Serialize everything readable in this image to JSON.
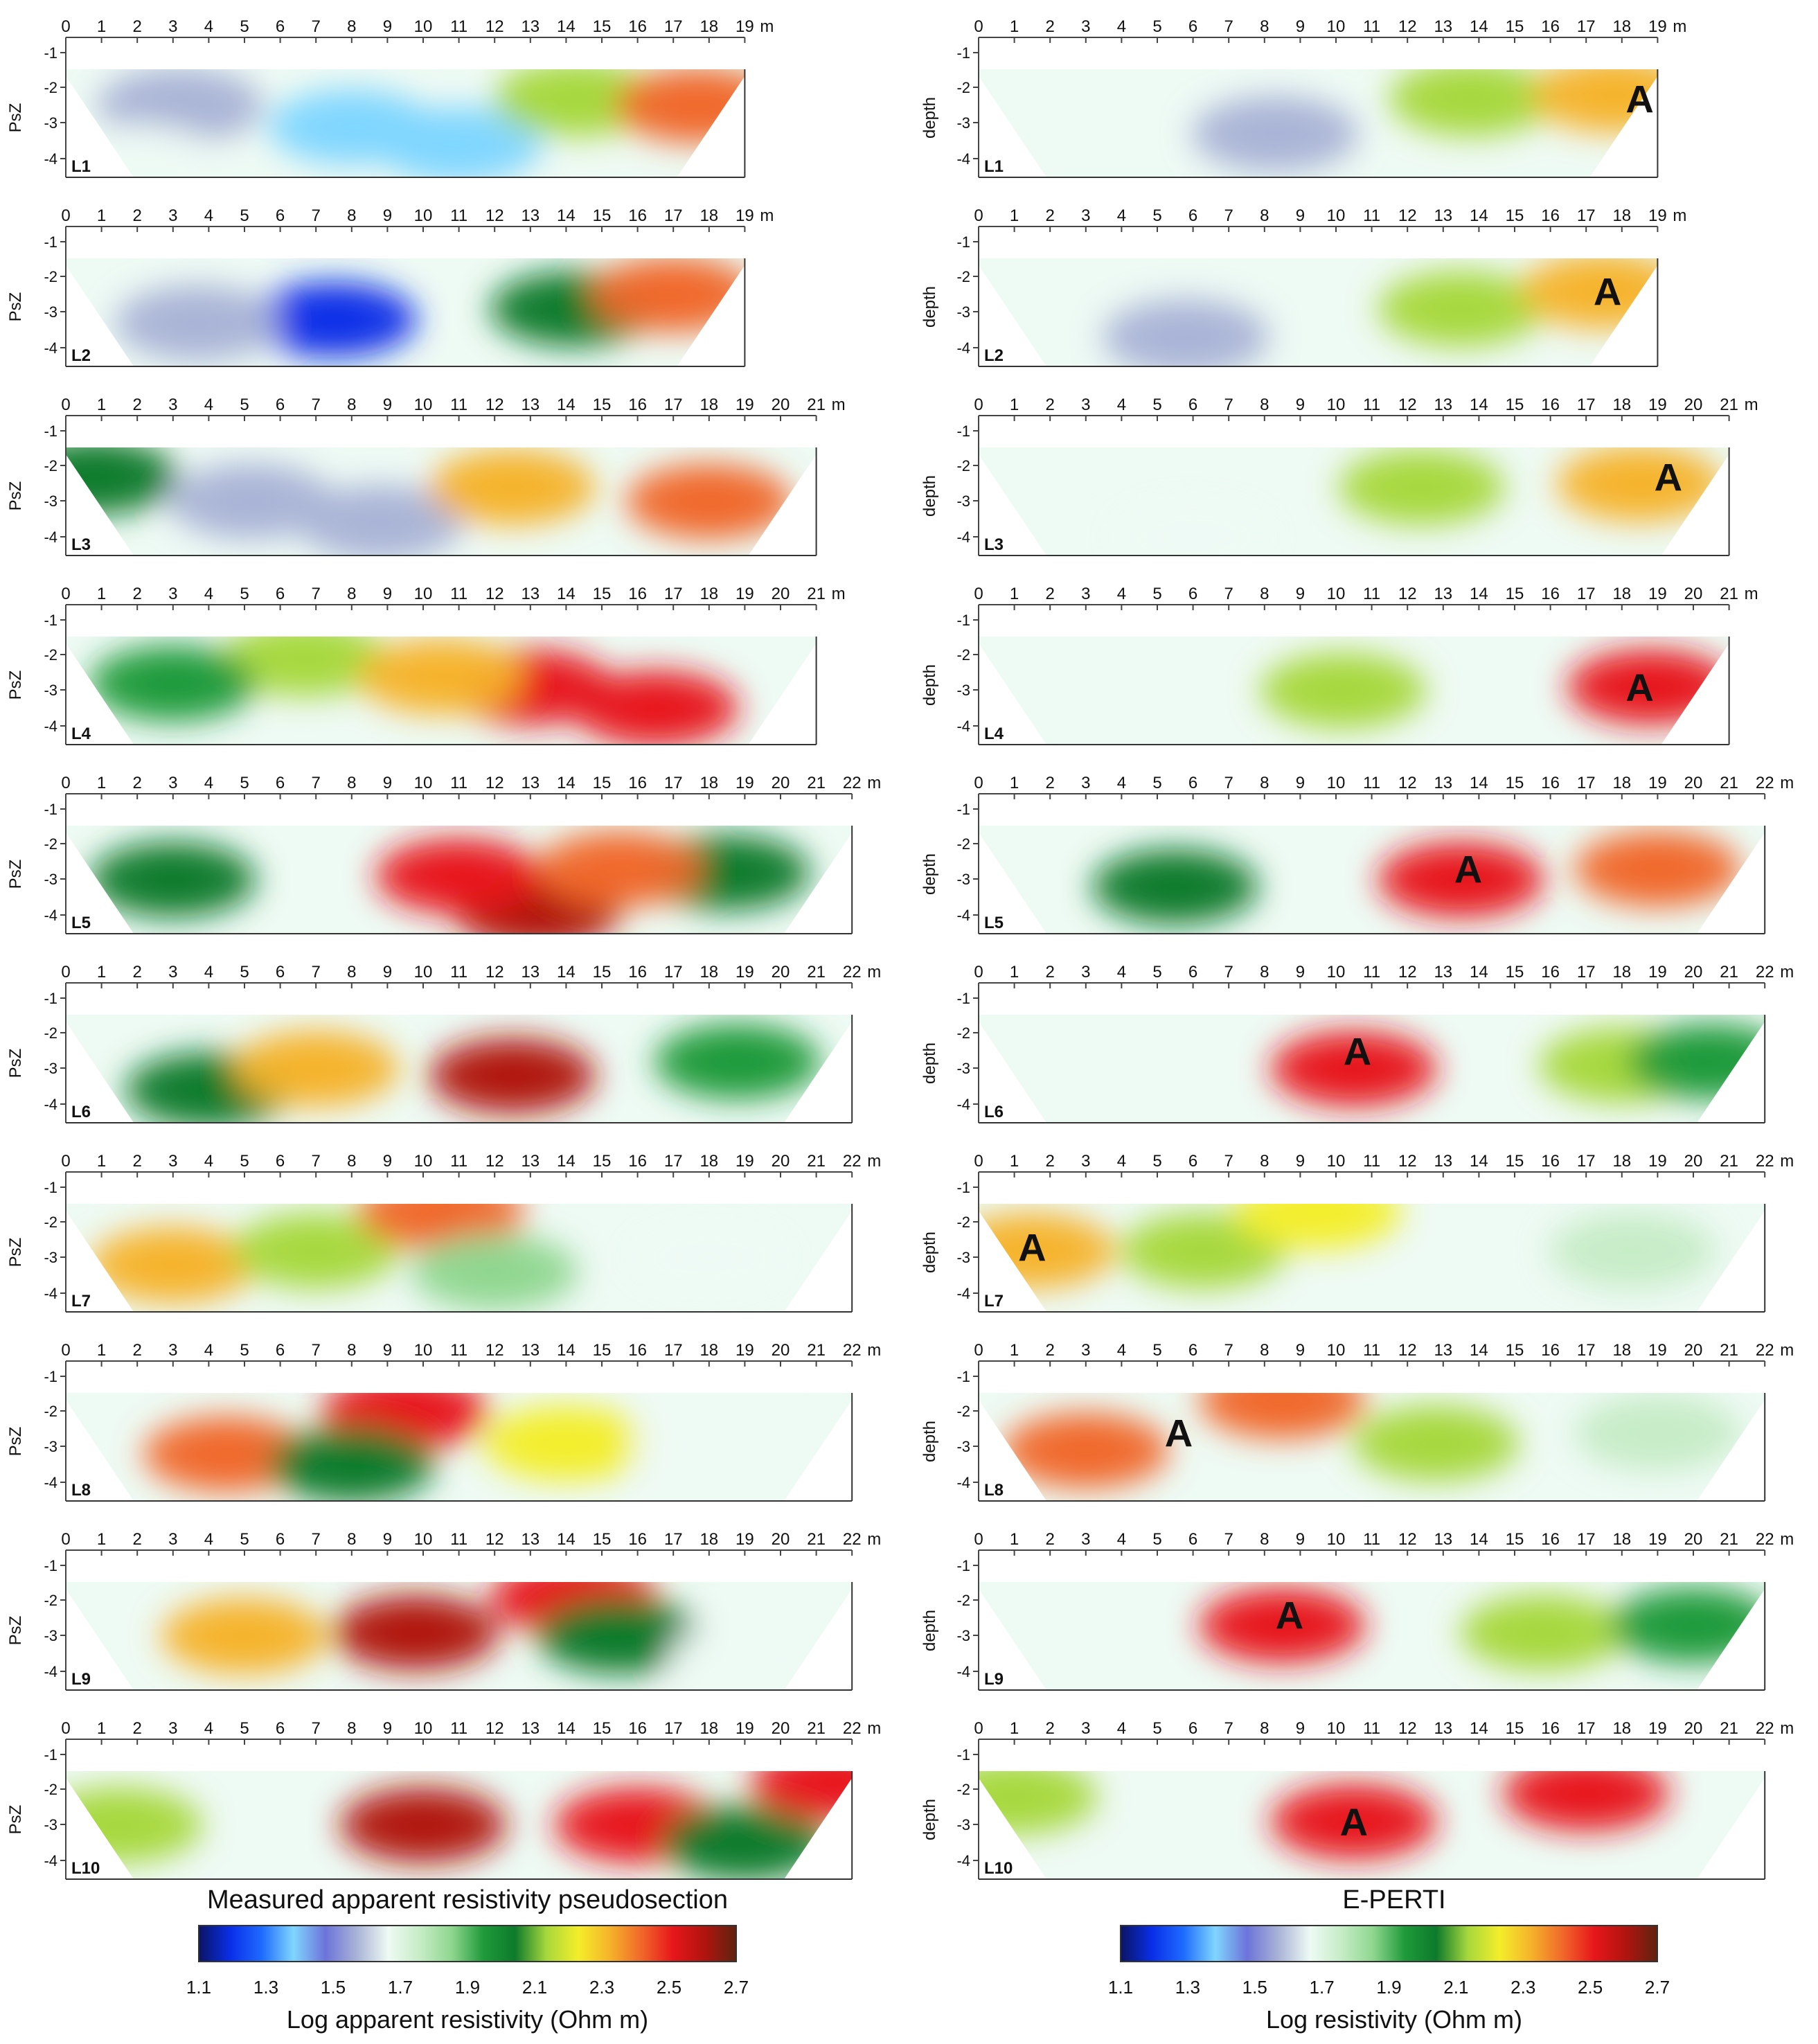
{
  "chart_data": {
    "type": "heatmap",
    "columns": [
      {
        "title": "Measured apparent resistivity pseudosection",
        "ylabel": "PsZ",
        "colorbar_label": "Log apparent resistivity (Ohm m)"
      },
      {
        "title": "E-PERTI",
        "ylabel": "depth",
        "colorbar_label": "Log resistivity (Ohm m)"
      }
    ],
    "x_unit": "m",
    "y_ticks": [
      "-1",
      "-2",
      "-3",
      "-4"
    ],
    "colorbar": {
      "ticks": [
        "1.1",
        "1.3",
        "1.5",
        "1.7",
        "1.9",
        "2.1",
        "2.3",
        "2.5",
        "2.7"
      ],
      "range": [
        1.1,
        2.7
      ],
      "stops": [
        "#0b1464",
        "#0a2ee8",
        "#1f6bff",
        "#7fd6ff",
        "#6c73d9",
        "#a9b3d6",
        "#eefaf4",
        "#c6ecc6",
        "#8fd68f",
        "#1f9a3a",
        "#0d7a2b",
        "#a6d83c",
        "#f3ee2a",
        "#f5b32a",
        "#f0682a",
        "#e7161a",
        "#b0140f",
        "#5e2410"
      ]
    },
    "anomaly_label": "A",
    "profiles": [
      {
        "label": "L1",
        "xmax": 19,
        "ticks": [
          "0",
          "1",
          "2",
          "3",
          "4",
          "5",
          "6",
          "7",
          "8",
          "9",
          "10",
          "11",
          "12",
          "13",
          "14",
          "15",
          "16",
          "17",
          "18",
          "19"
        ],
        "measured_blobs": [
          {
            "x": 3.2,
            "y": -2.5,
            "v": 1.6
          },
          {
            "x": 8.0,
            "y": -3.1,
            "v": 1.4
          },
          {
            "x": 11.0,
            "y": -3.6,
            "v": 1.4
          },
          {
            "x": 2.0,
            "y": -4.1,
            "v": 1.7
          },
          {
            "x": 14.3,
            "y": -2.3,
            "v": 2.1
          },
          {
            "x": 17.7,
            "y": -2.5,
            "v": 2.45
          }
        ],
        "eperti_blobs": [
          {
            "x": 8.3,
            "y": -3.3,
            "v": 1.55
          },
          {
            "x": 13.8,
            "y": -2.3,
            "v": 2.1
          },
          {
            "x": 17.8,
            "y": -2.2,
            "v": 2.35
          }
        ],
        "anomaly": {
          "x": 18.5,
          "y": -2.3
        }
      },
      {
        "label": "L2",
        "xmax": 19,
        "ticks": [
          "0",
          "1",
          "2",
          "3",
          "4",
          "5",
          "6",
          "7",
          "8",
          "9",
          "10",
          "11",
          "12",
          "13",
          "14",
          "15",
          "16",
          "17",
          "18",
          "19"
        ],
        "measured_blobs": [
          {
            "x": 7.5,
            "y": -3.2,
            "v": 1.2
          },
          {
            "x": 3.7,
            "y": -3.3,
            "v": 1.6
          },
          {
            "x": 14.2,
            "y": -2.9,
            "v": 2.05
          },
          {
            "x": 17.0,
            "y": -2.5,
            "v": 2.45
          }
        ],
        "eperti_blobs": [
          {
            "x": 5.8,
            "y": -3.7,
            "v": 1.6
          },
          {
            "x": 13.5,
            "y": -2.9,
            "v": 2.1
          },
          {
            "x": 17.5,
            "y": -2.4,
            "v": 2.35
          }
        ],
        "anomaly": {
          "x": 17.6,
          "y": -2.4
        }
      },
      {
        "label": "L3",
        "xmax": 21,
        "ticks": [
          "0",
          "1",
          "2",
          "3",
          "4",
          "5",
          "6",
          "7",
          "8",
          "9",
          "10",
          "11",
          "12",
          "13",
          "14",
          "15",
          "16",
          "17",
          "18",
          "19",
          "20",
          "21"
        ],
        "measured_blobs": [
          {
            "x": 5.2,
            "y": -3.0,
            "v": 1.6
          },
          {
            "x": 8.8,
            "y": -3.6,
            "v": 1.6
          },
          {
            "x": 12.5,
            "y": -2.6,
            "v": 2.3
          },
          {
            "x": 18.0,
            "y": -3.0,
            "v": 2.45
          },
          {
            "x": 0.8,
            "y": -2.3,
            "v": 2.05
          }
        ],
        "eperti_blobs": [
          {
            "x": 6.0,
            "y": -4.0,
            "v": 1.65
          },
          {
            "x": 12.4,
            "y": -2.6,
            "v": 2.1
          },
          {
            "x": 18.5,
            "y": -2.5,
            "v": 2.35
          }
        ],
        "anomaly": {
          "x": 19.3,
          "y": -2.3
        }
      },
      {
        "label": "L4",
        "xmax": 21,
        "ticks": [
          "0",
          "1",
          "2",
          "3",
          "4",
          "5",
          "6",
          "7",
          "8",
          "9",
          "10",
          "11",
          "12",
          "13",
          "14",
          "15",
          "16",
          "17",
          "18",
          "19",
          "20",
          "21"
        ],
        "measured_blobs": [
          {
            "x": 13.0,
            "y": -2.9,
            "v": 2.5
          },
          {
            "x": 16.5,
            "y": -3.5,
            "v": 2.55
          },
          {
            "x": 6.7,
            "y": -2.1,
            "v": 2.15
          },
          {
            "x": 10.5,
            "y": -2.6,
            "v": 2.35
          },
          {
            "x": 3.0,
            "y": -2.8,
            "v": 1.95
          }
        ],
        "eperti_blobs": [
          {
            "x": 10.2,
            "y": -3.0,
            "v": 2.1
          },
          {
            "x": 18.8,
            "y": -2.9,
            "v": 2.5
          }
        ],
        "anomaly": {
          "x": 18.5,
          "y": -2.9
        }
      },
      {
        "label": "L5",
        "xmax": 22,
        "ticks": [
          "0",
          "1",
          "2",
          "3",
          "4",
          "5",
          "6",
          "7",
          "8",
          "9",
          "10",
          "11",
          "12",
          "13",
          "14",
          "15",
          "16",
          "17",
          "18",
          "19",
          "20",
          "21",
          "22"
        ],
        "measured_blobs": [
          {
            "x": 13.2,
            "y": -3.9,
            "v": 2.65
          },
          {
            "x": 11.0,
            "y": -2.9,
            "v": 2.5
          },
          {
            "x": 3.0,
            "y": -3.0,
            "v": 2.05
          },
          {
            "x": 18.5,
            "y": -2.8,
            "v": 2.05
          },
          {
            "x": 15.5,
            "y": -2.7,
            "v": 2.4
          }
        ],
        "eperti_blobs": [
          {
            "x": 5.5,
            "y": -3.2,
            "v": 2.05
          },
          {
            "x": 13.5,
            "y": -3.0,
            "v": 2.55
          },
          {
            "x": 19.0,
            "y": -2.7,
            "v": 2.4
          }
        ],
        "anomaly": {
          "x": 13.7,
          "y": -2.7
        }
      },
      {
        "label": "L6",
        "xmax": 22,
        "ticks": [
          "0",
          "1",
          "2",
          "3",
          "4",
          "5",
          "6",
          "7",
          "8",
          "9",
          "10",
          "11",
          "12",
          "13",
          "14",
          "15",
          "16",
          "17",
          "18",
          "19",
          "20",
          "21",
          "22"
        ],
        "measured_blobs": [
          {
            "x": 12.5,
            "y": -3.2,
            "v": 2.6
          },
          {
            "x": 4.0,
            "y": -3.6,
            "v": 2.05
          },
          {
            "x": 18.8,
            "y": -2.8,
            "v": 1.95
          },
          {
            "x": 7.0,
            "y": -3.0,
            "v": 2.35
          }
        ],
        "eperti_blobs": [
          {
            "x": 10.5,
            "y": -3.0,
            "v": 2.55
          },
          {
            "x": 18.0,
            "y": -2.9,
            "v": 2.1
          },
          {
            "x": 20.5,
            "y": -2.8,
            "v": 1.95
          }
        ],
        "anomaly": {
          "x": 10.6,
          "y": -2.5
        }
      },
      {
        "label": "L7",
        "xmax": 22,
        "ticks": [
          "0",
          "1",
          "2",
          "3",
          "4",
          "5",
          "6",
          "7",
          "8",
          "9",
          "10",
          "11",
          "12",
          "13",
          "14",
          "15",
          "16",
          "17",
          "18",
          "19",
          "20",
          "21",
          "22"
        ],
        "measured_blobs": [
          {
            "x": 3.0,
            "y": -3.2,
            "v": 2.35
          },
          {
            "x": 7.0,
            "y": -2.8,
            "v": 2.1
          },
          {
            "x": 18.0,
            "y": -3.0,
            "v": 1.65
          },
          {
            "x": 10.5,
            "y": -1.7,
            "v": 2.45
          },
          {
            "x": 12.0,
            "y": -3.4,
            "v": 1.9
          }
        ],
        "eperti_blobs": [
          {
            "x": 1.5,
            "y": -2.8,
            "v": 2.35
          },
          {
            "x": 6.3,
            "y": -2.8,
            "v": 2.1
          },
          {
            "x": 18.3,
            "y": -2.8,
            "v": 1.75
          },
          {
            "x": 9.5,
            "y": -1.7,
            "v": 2.25
          }
        ],
        "anomaly": {
          "x": 1.5,
          "y": -2.7
        }
      },
      {
        "label": "L8",
        "xmax": 22,
        "ticks": [
          "0",
          "1",
          "2",
          "3",
          "4",
          "5",
          "6",
          "7",
          "8",
          "9",
          "10",
          "11",
          "12",
          "13",
          "14",
          "15",
          "16",
          "17",
          "18",
          "19",
          "20",
          "21",
          "22"
        ],
        "measured_blobs": [
          {
            "x": 4.5,
            "y": -3.2,
            "v": 2.45
          },
          {
            "x": 9.5,
            "y": -2.0,
            "v": 2.5
          },
          {
            "x": 14.0,
            "y": -2.9,
            "v": 2.2
          },
          {
            "x": 18.2,
            "y": -3.0,
            "v": 1.65
          },
          {
            "x": 8.0,
            "y": -3.5,
            "v": 2.05
          }
        ],
        "eperti_blobs": [
          {
            "x": 3.0,
            "y": -3.1,
            "v": 2.4
          },
          {
            "x": 12.8,
            "y": -2.9,
            "v": 2.1
          },
          {
            "x": 19.0,
            "y": -2.6,
            "v": 1.75
          },
          {
            "x": 8.5,
            "y": -1.7,
            "v": 2.4
          }
        ],
        "anomaly": {
          "x": 5.6,
          "y": -2.6
        }
      },
      {
        "label": "L9",
        "xmax": 22,
        "ticks": [
          "0",
          "1",
          "2",
          "3",
          "4",
          "5",
          "6",
          "7",
          "8",
          "9",
          "10",
          "11",
          "12",
          "13",
          "14",
          "15",
          "16",
          "17",
          "18",
          "19",
          "20",
          "21",
          "22"
        ],
        "measured_blobs": [
          {
            "x": 9.8,
            "y": -2.9,
            "v": 2.6
          },
          {
            "x": 14.2,
            "y": -1.9,
            "v": 2.5
          },
          {
            "x": 15.5,
            "y": -3.0,
            "v": 2.05
          },
          {
            "x": 19.2,
            "y": -3.6,
            "v": 1.7
          },
          {
            "x": 5.0,
            "y": -3.0,
            "v": 2.35
          }
        ],
        "eperti_blobs": [
          {
            "x": 8.5,
            "y": -2.7,
            "v": 2.5
          },
          {
            "x": 15.8,
            "y": -2.9,
            "v": 2.1
          },
          {
            "x": 20.0,
            "y": -2.7,
            "v": 1.95
          }
        ],
        "anomaly": {
          "x": 8.7,
          "y": -2.4
        }
      },
      {
        "label": "L10",
        "xmax": 22,
        "ticks": [
          "0",
          "1",
          "2",
          "3",
          "4",
          "5",
          "6",
          "7",
          "8",
          "9",
          "10",
          "11",
          "12",
          "13",
          "14",
          "15",
          "16",
          "17",
          "18",
          "19",
          "20",
          "21",
          "22"
        ],
        "measured_blobs": [
          {
            "x": 10.0,
            "y": -3.0,
            "v": 2.65
          },
          {
            "x": 16.0,
            "y": -3.0,
            "v": 2.5
          },
          {
            "x": 1.5,
            "y": -3.0,
            "v": 2.15
          },
          {
            "x": 19.0,
            "y": -3.5,
            "v": 2.0
          },
          {
            "x": 21.5,
            "y": -1.8,
            "v": 2.5
          }
        ],
        "eperti_blobs": [
          {
            "x": 10.5,
            "y": -2.9,
            "v": 2.55
          },
          {
            "x": 17.0,
            "y": -2.1,
            "v": 2.5
          },
          {
            "x": 1.0,
            "y": -2.2,
            "v": 2.15
          }
        ],
        "anomaly": {
          "x": 10.5,
          "y": -2.9
        }
      }
    ]
  }
}
